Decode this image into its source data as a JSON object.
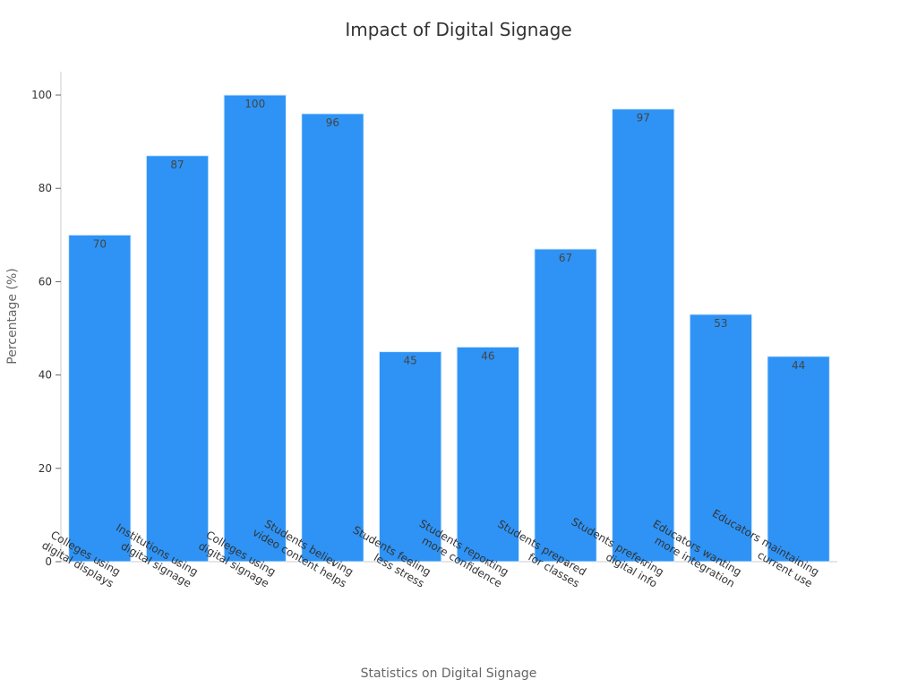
{
  "chart_data": {
    "type": "bar",
    "title": "Impact of Digital Signage",
    "xlabel": "Statistics on Digital Signage",
    "ylabel": "Percentage (%)",
    "ylim": [
      0,
      105
    ],
    "yticks": [
      0,
      20,
      40,
      60,
      80,
      100
    ],
    "bar_color": "#2e93f5",
    "categories": [
      [
        "Colleges using",
        "digital displays"
      ],
      [
        "Institutions using",
        "digital signage"
      ],
      [
        "Colleges using",
        "digital signage"
      ],
      [
        "Students believing",
        "video content helps"
      ],
      [
        "Students feeling",
        "less stress"
      ],
      [
        "Students reporting",
        "more confidence"
      ],
      [
        "Students prepared",
        "for classes"
      ],
      [
        "Students preferring",
        "digital info"
      ],
      [
        "Educators wanting",
        "more integration"
      ],
      [
        "Educators maintaining",
        "current use"
      ]
    ],
    "values": [
      70,
      87,
      100,
      96,
      45,
      46,
      67,
      97,
      53,
      44
    ],
    "grid": false,
    "legend": "none"
  }
}
